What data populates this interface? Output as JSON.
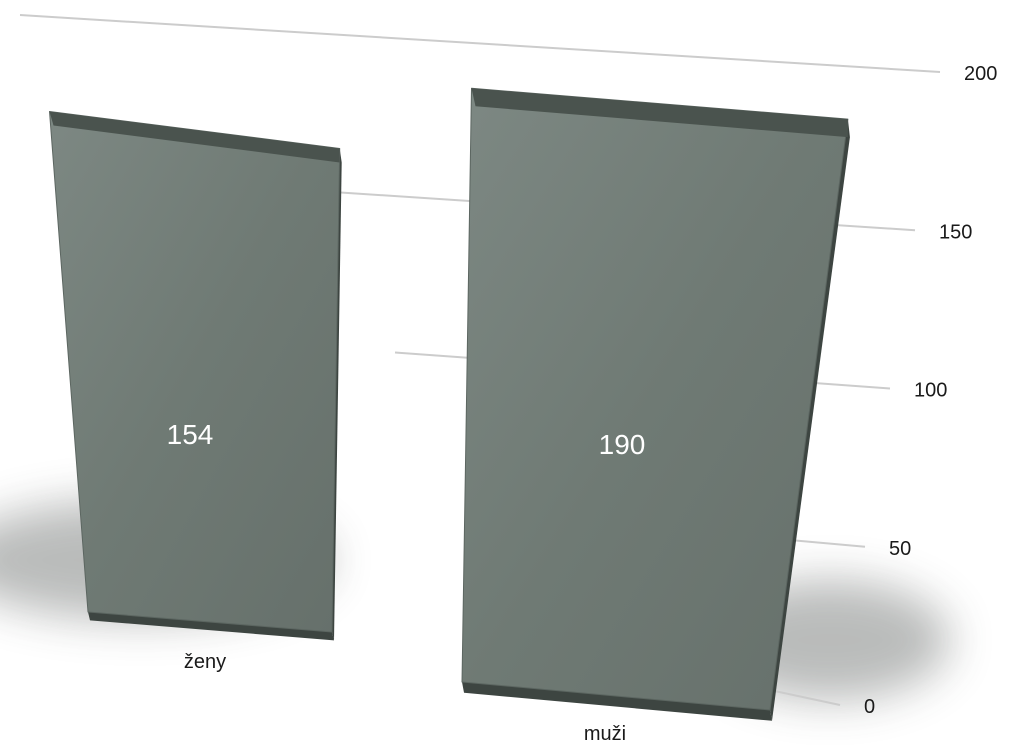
{
  "chart_data": {
    "type": "bar",
    "categories": [
      "ženy",
      "muži"
    ],
    "values": [
      154,
      190
    ],
    "data_labels": [
      "154",
      "190"
    ],
    "title": "",
    "xlabel": "",
    "ylabel": "",
    "ylim": [
      0,
      200
    ],
    "y_ticks": [
      0,
      50,
      100,
      150,
      200
    ],
    "y_tick_labels": [
      "0",
      "50",
      "100",
      "150",
      "200"
    ],
    "grid": true,
    "legend": "none",
    "style": "3d-perspective",
    "colors": {
      "bar": "#6f7a74",
      "bar_top": "#4a534e",
      "bar_side": "#3d4541",
      "grid": "#cccccc",
      "data_label": "#ffffff"
    }
  }
}
